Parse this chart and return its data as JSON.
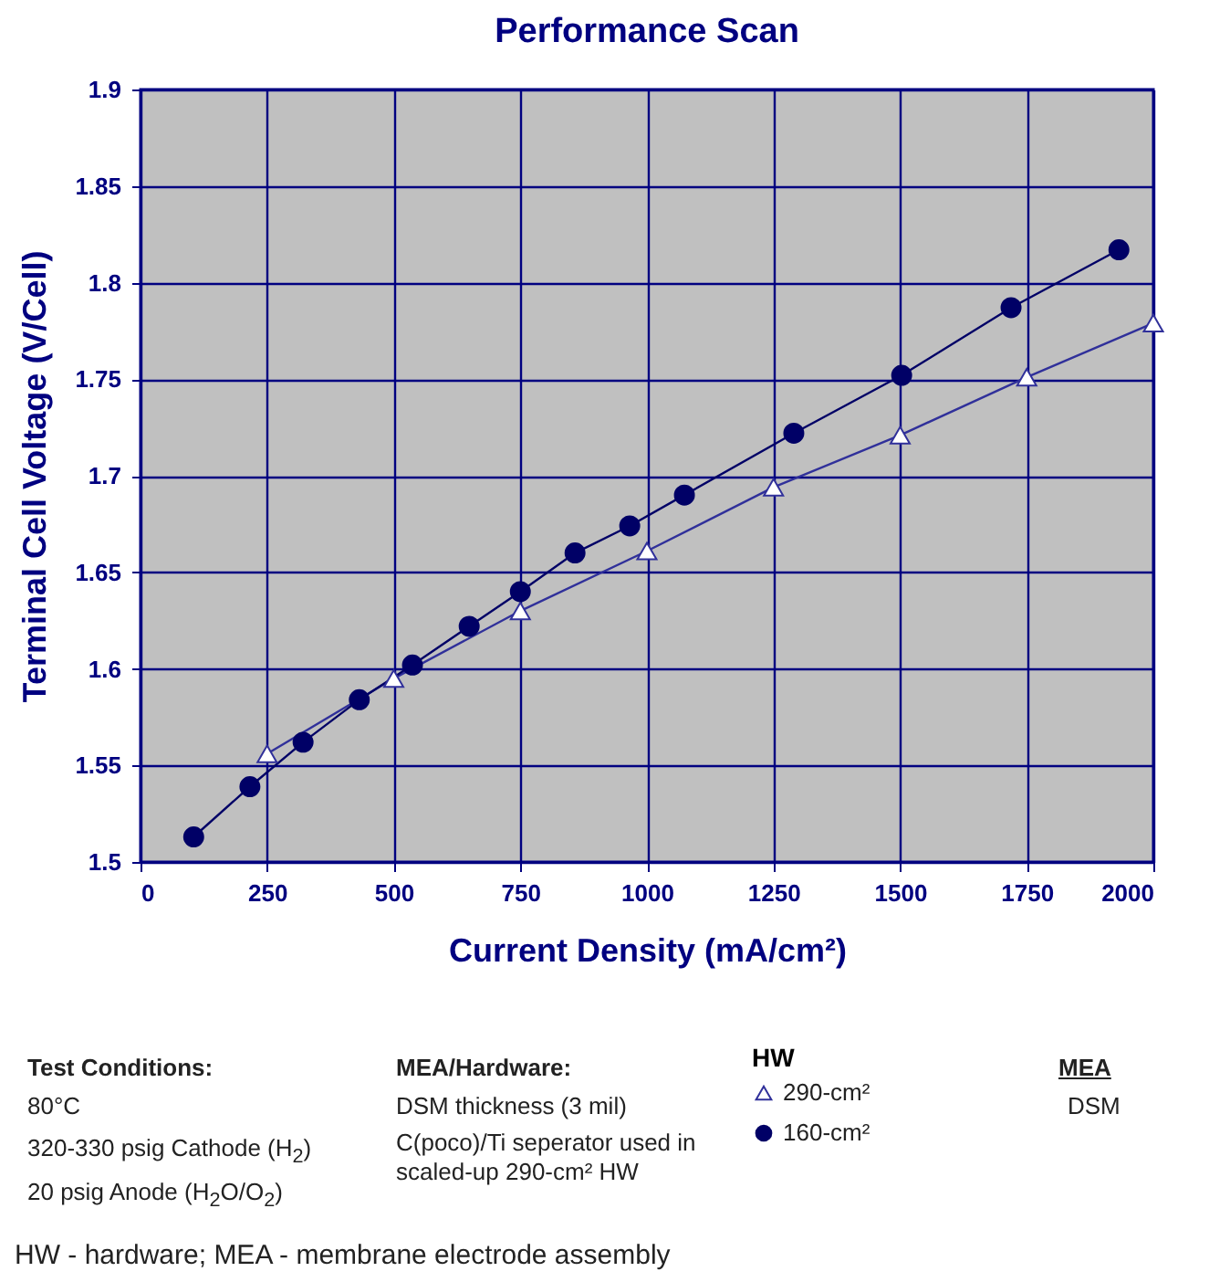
{
  "chart_data": {
    "type": "line",
    "title": "Performance Scan",
    "xlabel": "Current Density (mA/cm²)",
    "ylabel": "Terminal Cell Voltage (V/Cell)",
    "legend_title": "HW",
    "xlim": [
      0,
      2000
    ],
    "xticks": [
      0,
      250,
      500,
      750,
      1000,
      1250,
      1500,
      1750,
      2000
    ],
    "ylim": [
      1.5,
      1.9
    ],
    "yticks": [
      1.5,
      1.55,
      1.6,
      1.65,
      1.7,
      1.75,
      1.8,
      1.85,
      1.9
    ],
    "grid": true,
    "legend": "bottom",
    "series": [
      {
        "name": "290-cm²",
        "color": "#30309a",
        "marker": "triangle",
        "x": [
          250,
          500,
          750,
          1000,
          1250,
          1500,
          1750,
          2000
        ],
        "values": [
          1.556,
          1.595,
          1.63,
          1.661,
          1.694,
          1.721,
          1.751,
          1.779
        ]
      },
      {
        "name": "160-cm²",
        "color": "#000066",
        "marker": "circle",
        "x": [
          105,
          216,
          321,
          432,
          537,
          649,
          750,
          858,
          966,
          1074,
          1290,
          1503,
          1719,
          1932
        ],
        "values": [
          1.513,
          1.539,
          1.562,
          1.584,
          1.602,
          1.622,
          1.64,
          1.66,
          1.674,
          1.69,
          1.722,
          1.752,
          1.787,
          1.817
        ]
      }
    ],
    "annotations": [
      "Test Conditions:",
      "80°C",
      "320-330 psig Cathode (H$_{2}$)",
      "20 psig Anode (H$_{2}$O/O$_{2}$)",
      "MEA/Hardware:",
      "DSM thickness (3 mil)",
      "C(poco)/Ti seperator used in scaled-up 290-cm² HW",
      "MEA",
      "DSM",
      "HW - hardware; MEA - membrane electrode assembly"
    ]
  }
}
